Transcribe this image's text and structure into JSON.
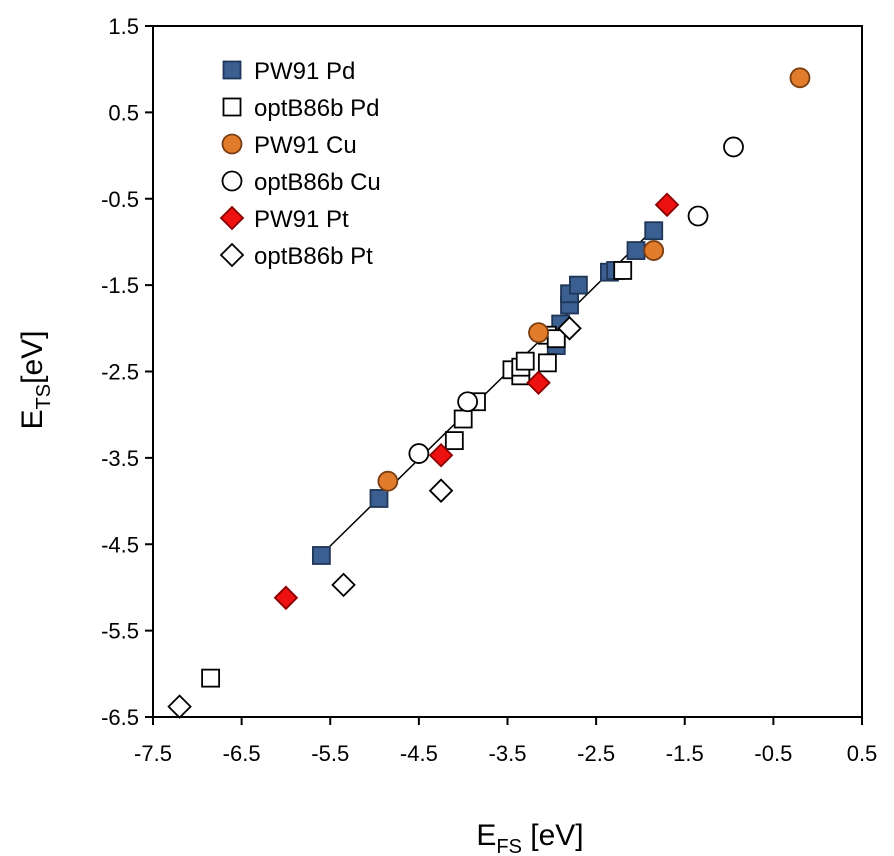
{
  "chart_data": {
    "type": "scatter",
    "x_axis": {
      "title_main": "E",
      "title_sub": "FS",
      "title_unit": " [eV]",
      "min": -7.5,
      "max": 0.5,
      "ticks": [
        "-7.5",
        "-6.5",
        "-5.5",
        "-4.5",
        "-3.5",
        "-2.5",
        "-1.5",
        "-0.5",
        "0.5"
      ]
    },
    "y_axis": {
      "title_main": "E",
      "title_sub": "TS",
      "title_unit": "[eV]",
      "min": -6.5,
      "max": 1.5,
      "ticks": [
        "1.5",
        "0.5",
        "-0.5",
        "-1.5",
        "-2.5",
        "-3.5",
        "-4.5",
        "-5.5",
        "-6.5"
      ]
    },
    "grid": false,
    "legend_position": "top-left",
    "fit_line": {
      "x": [
        -5.6,
        -1.85
      ],
      "y": [
        -4.62,
        -0.85
      ],
      "color": "#000000"
    },
    "series": [
      {
        "name": "PW91 Pd",
        "marker": "square",
        "fill": "#3b5f91",
        "stroke": "#1f3657",
        "points": [
          [
            -5.6,
            -4.63
          ],
          [
            -4.95,
            -3.97
          ],
          [
            -2.95,
            -2.2
          ],
          [
            -2.9,
            -1.95
          ],
          [
            -2.8,
            -1.73
          ],
          [
            -2.8,
            -1.6
          ],
          [
            -2.7,
            -1.5
          ],
          [
            -2.35,
            -1.35
          ],
          [
            -2.28,
            -1.33
          ],
          [
            -2.05,
            -1.1
          ],
          [
            -1.85,
            -0.87
          ]
        ]
      },
      {
        "name": "optB86b Pd",
        "marker": "square",
        "fill": "#ffffff",
        "stroke": "#000000",
        "points": [
          [
            -6.85,
            -6.05
          ],
          [
            -4.1,
            -3.3
          ],
          [
            -4.0,
            -3.05
          ],
          [
            -3.85,
            -2.85
          ],
          [
            -3.45,
            -2.48
          ],
          [
            -3.35,
            -2.55
          ],
          [
            -3.35,
            -2.45
          ],
          [
            -3.3,
            -2.38
          ],
          [
            -3.05,
            -2.4
          ],
          [
            -3.05,
            -2.08
          ],
          [
            -2.95,
            -2.12
          ],
          [
            -2.2,
            -1.33
          ]
        ]
      },
      {
        "name": "PW91 Cu",
        "marker": "circle",
        "fill": "#e17c2c",
        "stroke": "#7a3e10",
        "points": [
          [
            -4.85,
            -3.77
          ],
          [
            -3.15,
            -2.05
          ],
          [
            -1.85,
            -1.1
          ],
          [
            -0.2,
            0.9
          ]
        ]
      },
      {
        "name": "optB86b Cu",
        "marker": "circle",
        "fill": "#ffffff",
        "stroke": "#000000",
        "points": [
          [
            -4.5,
            -3.45
          ],
          [
            -3.95,
            -2.85
          ],
          [
            -1.35,
            -0.7
          ],
          [
            -0.95,
            0.1
          ]
        ]
      },
      {
        "name": "PW91 Pt",
        "marker": "diamond",
        "fill": "#ee1111",
        "stroke": "#8a0000",
        "points": [
          [
            -6.0,
            -5.12
          ],
          [
            -4.25,
            -3.47
          ],
          [
            -3.15,
            -2.63
          ],
          [
            -1.7,
            -0.57
          ]
        ]
      },
      {
        "name": "optB86b Pt",
        "marker": "diamond",
        "fill": "#ffffff",
        "stroke": "#000000",
        "points": [
          [
            -7.2,
            -6.38
          ],
          [
            -5.35,
            -4.97
          ],
          [
            -4.25,
            -3.88
          ],
          [
            -2.8,
            -2.0
          ]
        ]
      }
    ]
  }
}
